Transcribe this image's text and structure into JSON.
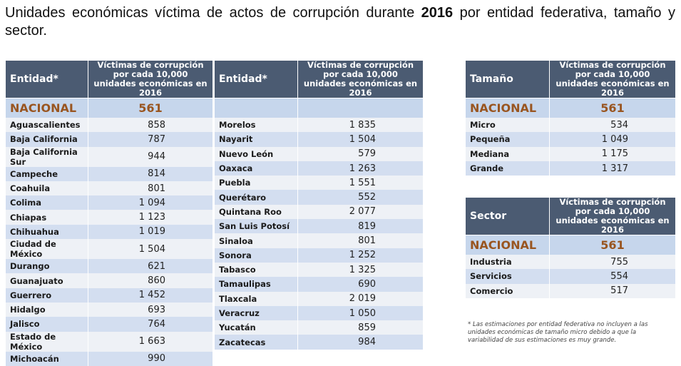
{
  "title": {
    "pre": "Unidades económicas víctima de actos de corrupción durante ",
    "year": "2016",
    "post": " por entidad federativa, tamaño y sector."
  },
  "col_value": "Víctimas de corrupción por cada 10,000 unidades económicas en 2016",
  "col_entidad": "Entidad*",
  "col_tamano": "Tamaño",
  "col_sector": "Sector",
  "nacional": {
    "label": "NACIONAL",
    "value": "561"
  },
  "entidades_left": [
    [
      "Aguascalientes",
      "858"
    ],
    [
      "Baja California",
      "787"
    ],
    [
      "Baja California Sur",
      "944"
    ],
    [
      "Campeche",
      "814"
    ],
    [
      "Coahuila",
      "801"
    ],
    [
      "Colima",
      "1 094"
    ],
    [
      "Chiapas",
      "1 123"
    ],
    [
      "Chihuahua",
      "1 019"
    ],
    [
      "Ciudad de México",
      "1 504"
    ],
    [
      "Durango",
      "621"
    ],
    [
      "Guanajuato",
      "860"
    ],
    [
      "Guerrero",
      "1 452"
    ],
    [
      "Hidalgo",
      "693"
    ],
    [
      "Jalisco",
      "764"
    ],
    [
      "Estado de México",
      "1 663"
    ],
    [
      "Michoacán",
      "990"
    ]
  ],
  "entidades_right": [
    [
      "Morelos",
      "1 835"
    ],
    [
      "Nayarit",
      "1 504"
    ],
    [
      "Nuevo León",
      "579"
    ],
    [
      "Oaxaca",
      "1 263"
    ],
    [
      "Puebla",
      "1 551"
    ],
    [
      "Querétaro",
      "552"
    ],
    [
      "Quintana Roo",
      "2 077"
    ],
    [
      "San Luis Potosí",
      "819"
    ],
    [
      "Sinaloa",
      "801"
    ],
    [
      "Sonora",
      "1 252"
    ],
    [
      "Tabasco",
      "1 325"
    ],
    [
      "Tamaulipas",
      "690"
    ],
    [
      "Tlaxcala",
      "2 019"
    ],
    [
      "Veracruz",
      "1 050"
    ],
    [
      "Yucatán",
      "859"
    ],
    [
      "Zacatecas",
      "984"
    ]
  ],
  "tamano": [
    [
      "Micro",
      "534"
    ],
    [
      "Pequeña",
      "1 049"
    ],
    [
      "Mediana",
      "1 175"
    ],
    [
      "Grande",
      "1 317"
    ]
  ],
  "sector": [
    [
      "Industria",
      "755"
    ],
    [
      "Servicios",
      "554"
    ],
    [
      "Comercio",
      "517"
    ]
  ],
  "footnote": "* Las estimaciones por entidad federativa no incluyen a las unidades económicas de tamaño micro debido a que la variabilidad de sus estimaciones es muy grande."
}
